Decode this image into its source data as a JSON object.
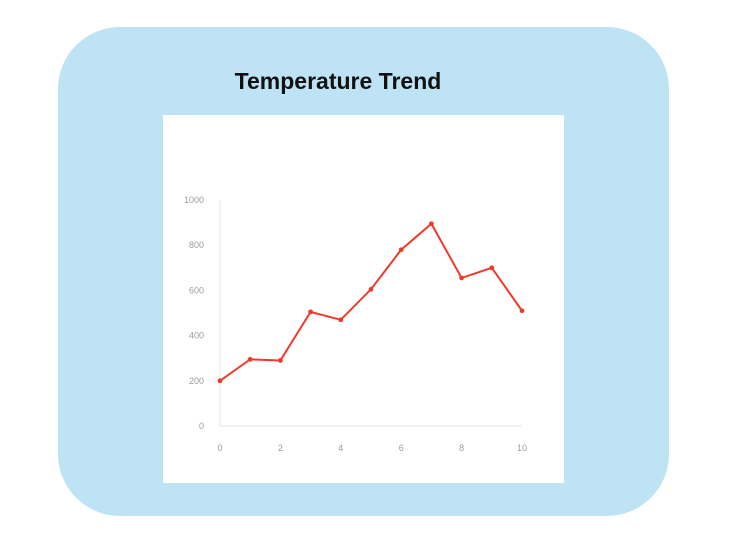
{
  "chart_data": {
    "type": "line",
    "title": "Temperature Trend",
    "xlabel": "",
    "ylabel": "",
    "x": [
      0,
      1,
      2,
      3,
      4,
      5,
      6,
      7,
      8,
      9,
      10
    ],
    "y": [
      200,
      295,
      290,
      505,
      470,
      605,
      780,
      895,
      655,
      700,
      510
    ],
    "xlim": [
      0,
      10
    ],
    "ylim": [
      0,
      1000
    ],
    "xticks": [
      "0",
      "2",
      "4",
      "6",
      "8",
      "10"
    ],
    "yticks": [
      "0",
      "200",
      "400",
      "600",
      "800",
      "1000"
    ],
    "grid": false,
    "line_color": "#ee3b2b",
    "card_color": "#bde3f4"
  }
}
